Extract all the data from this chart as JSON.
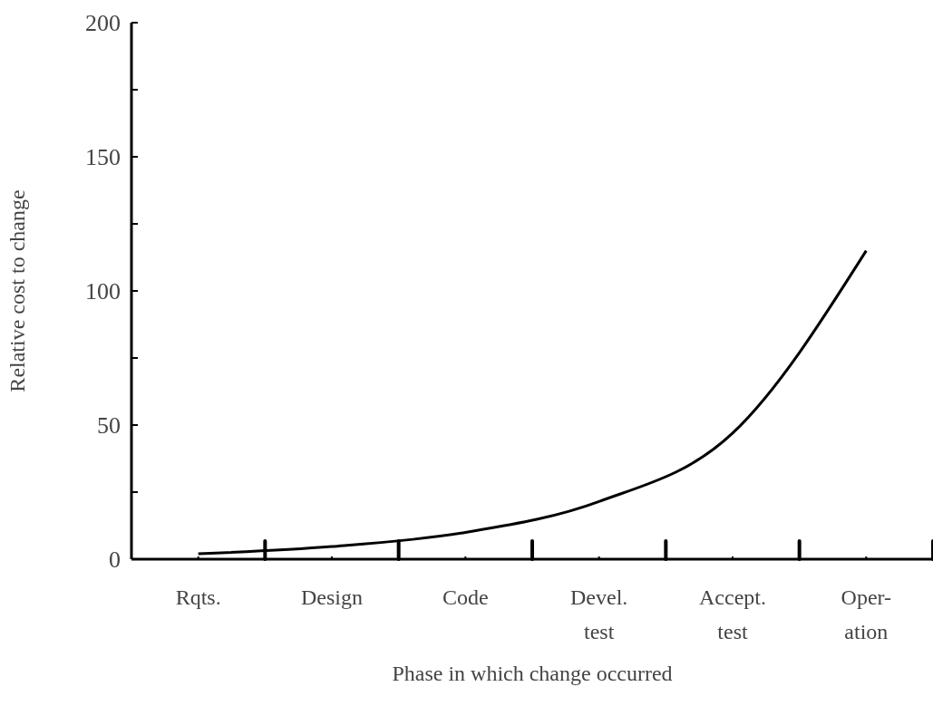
{
  "chart_data": {
    "type": "line",
    "xlabel": "Phase in which change occurred",
    "ylabel": "Relative cost to change",
    "categories": [
      "Rqts.",
      "Design",
      "Code",
      "Devel.\ntest",
      "Accept.\ntest",
      "Oper-\nation"
    ],
    "series": [
      {
        "color": "#000000",
        "values": [
          2,
          4.7,
          10,
          21.5,
          47,
          115
        ]
      }
    ],
    "ylim": [
      0,
      200
    ],
    "yticks": [
      0,
      {
        "value": 25,
        "label": null
      },
      50,
      {
        "value": 75,
        "label": null
      },
      100,
      {
        "value": 125,
        "label": null
      },
      150,
      {
        "value": 175,
        "label": null
      },
      200
    ]
  }
}
